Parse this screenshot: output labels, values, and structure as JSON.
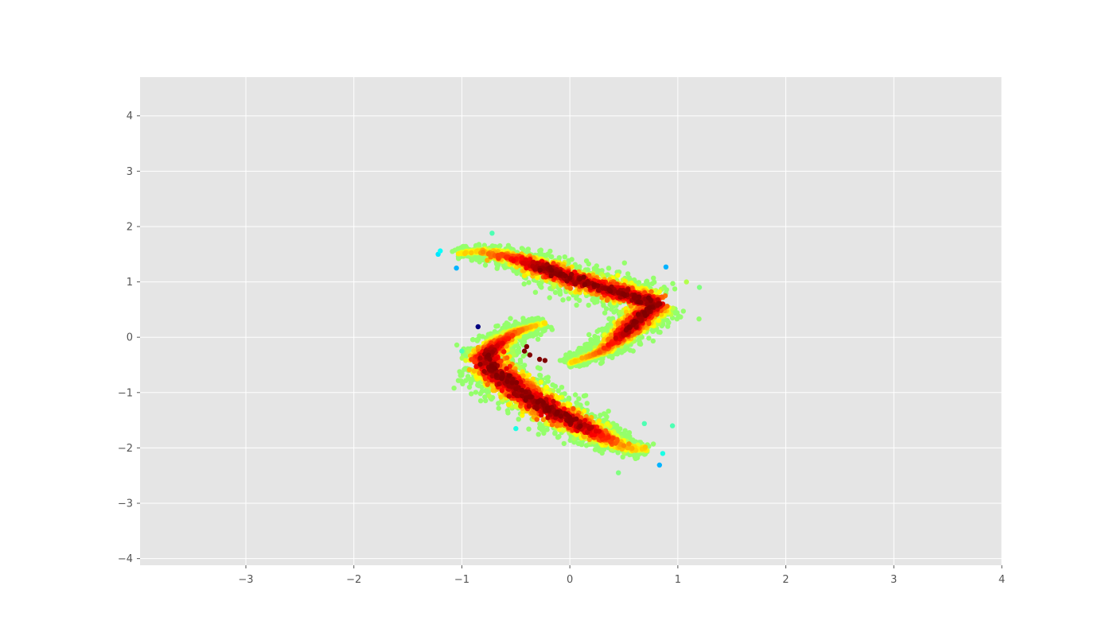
{
  "chart_data": {
    "type": "scatter",
    "title": "",
    "xlabel": "",
    "ylabel": "",
    "xlim": [
      -3.98,
      4.0
    ],
    "ylim": [
      -4.12,
      4.7
    ],
    "xticks": [
      -3,
      -2,
      -1,
      0,
      1,
      2,
      3,
      4
    ],
    "yticks": [
      -4,
      -3,
      -2,
      -1,
      0,
      1,
      2,
      3,
      4
    ],
    "xtick_labels": [
      "−3",
      "−2",
      "−1",
      "0",
      "1",
      "2",
      "3",
      "4"
    ],
    "ytick_labels": [
      "−4",
      "−3",
      "−2",
      "−1",
      "0",
      "1",
      "2",
      "3",
      "4"
    ],
    "grid": true,
    "background": "#e5e5e5",
    "grid_color": "#ffffff",
    "colormap": "jet",
    "color_meaning": "point density (dark red = highest, blue = lowest)",
    "clusters": [
      {
        "shape": "curved band",
        "path": [
          [
            -1.02,
            1.52
          ],
          [
            -0.8,
            1.55
          ],
          [
            -0.5,
            1.42
          ],
          [
            -0.2,
            1.22
          ],
          [
            0.1,
            1.0
          ],
          [
            0.4,
            0.85
          ],
          [
            0.6,
            0.72
          ],
          [
            0.8,
            0.62
          ],
          [
            0.65,
            0.35
          ],
          [
            0.5,
            0.05
          ],
          [
            0.3,
            -0.25
          ],
          [
            0.0,
            -0.47
          ]
        ],
        "spread": 0.09,
        "peak_density": "dark red around (0.4, 0.8)"
      },
      {
        "shape": "curved band",
        "path": [
          [
            -0.25,
            0.25
          ],
          [
            -0.5,
            0.1
          ],
          [
            -0.72,
            -0.2
          ],
          [
            -0.78,
            -0.45
          ],
          [
            -0.6,
            -0.75
          ],
          [
            -0.4,
            -1.05
          ],
          [
            -0.15,
            -1.35
          ],
          [
            0.1,
            -1.6
          ],
          [
            0.35,
            -1.85
          ],
          [
            0.55,
            -2.0
          ],
          [
            0.7,
            -2.05
          ]
        ],
        "spread": 0.1,
        "peak_density": "dark red around (-0.55, -0.6)"
      }
    ],
    "outliers": [
      {
        "x": -0.85,
        "y": 0.19,
        "level": 0.0
      },
      {
        "x": -0.4,
        "y": -0.17,
        "level": 1.0
      },
      {
        "x": -0.37,
        "y": -0.32,
        "level": 1.0
      },
      {
        "x": -0.28,
        "y": -0.4,
        "level": 1.0
      },
      {
        "x": -0.23,
        "y": -0.42,
        "level": 1.0
      },
      {
        "x": -0.42,
        "y": -0.25,
        "level": 1.0
      },
      {
        "x": 0.89,
        "y": 1.27,
        "level": 0.3
      },
      {
        "x": -1.05,
        "y": 1.25,
        "level": 0.3
      },
      {
        "x": -1.22,
        "y": 1.5,
        "level": 0.35
      },
      {
        "x": -1.2,
        "y": 1.56,
        "level": 0.38
      },
      {
        "x": 0.83,
        "y": -2.31,
        "level": 0.3
      },
      {
        "x": 0.86,
        "y": -2.1,
        "level": 0.4
      },
      {
        "x": 0.69,
        "y": -1.56,
        "level": 0.45
      },
      {
        "x": 1.2,
        "y": 0.9,
        "level": 0.5
      },
      {
        "x": 1.08,
        "y": 1.0,
        "level": 0.55
      },
      {
        "x": -1.0,
        "y": -0.25,
        "level": 0.45
      },
      {
        "x": -0.72,
        "y": 1.88,
        "level": 0.45
      },
      {
        "x": 0.45,
        "y": -2.45,
        "level": 0.5
      },
      {
        "x": -0.5,
        "y": -1.65,
        "level": 0.4
      },
      {
        "x": 0.95,
        "y": -1.6,
        "level": 0.45
      }
    ]
  }
}
